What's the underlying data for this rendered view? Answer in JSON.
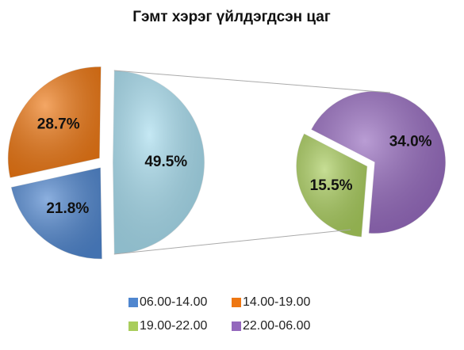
{
  "chart_data": {
    "type": "pie-of-pie",
    "title": "Гэмт хэрэг үйлдэгдсэн цаг",
    "series": [
      {
        "name": "06.00-14.00",
        "color": "#4f86cf"
      },
      {
        "name": "14.00-19.00",
        "color": "#ee7712"
      },
      {
        "name": "19.00-22.00",
        "color": "#a9cd5c"
      },
      {
        "name": "22.00-06.00",
        "color": "#9468bd"
      }
    ],
    "values": [
      21.8,
      28.7,
      15.5,
      34.0
    ],
    "value_labels": [
      "21.8%",
      "28.7%",
      "15.5%",
      "34.0%"
    ],
    "other": {
      "value": 49.5,
      "label": "49.5%",
      "color": "#a6dcee"
    },
    "legend": "bottom"
  }
}
